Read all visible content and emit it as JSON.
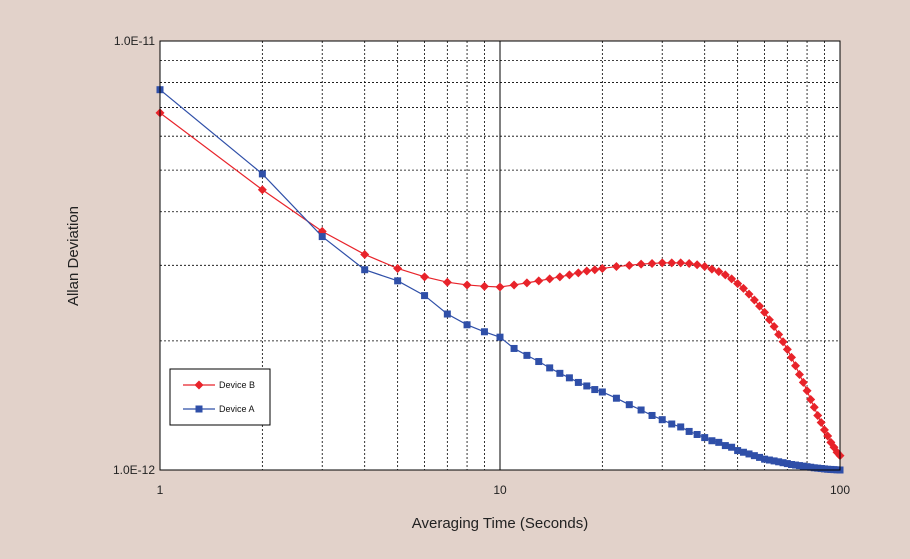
{
  "chart_data": {
    "type": "line",
    "title": "",
    "xlabel": "Averaging Time (Seconds)",
    "ylabel": "Allan Deviation",
    "x_scale": "log",
    "y_scale": "log",
    "xlim": [
      1,
      100
    ],
    "ylim": [
      1e-12,
      1e-11
    ],
    "x_tick_labels": [
      "1",
      "10",
      "100"
    ],
    "y_tick_labels": [
      "1.0E-12",
      "1.0E-11"
    ],
    "grid": true,
    "legend_position": "lower-left",
    "colors": {
      "background": "#e2d2ca",
      "plot_area": "#ffffff",
      "device_b": "#e8232a",
      "device_a": "#2f4fa8"
    },
    "series": [
      {
        "name": "Device B",
        "marker": "diamond",
        "x": [
          1,
          2,
          3,
          4,
          5,
          6,
          7,
          8,
          9,
          10,
          11,
          12,
          13,
          14,
          15,
          16,
          17,
          18,
          19,
          20,
          22,
          24,
          26,
          28,
          30,
          32,
          34,
          36,
          38,
          40,
          42,
          44,
          46,
          48,
          50,
          52,
          54,
          56,
          58,
          60,
          62,
          64,
          66,
          68,
          70,
          72,
          74,
          76,
          78,
          80,
          82,
          84,
          86,
          88,
          90,
          92,
          94,
          96,
          98,
          100
        ],
        "y": [
          6.8e-12,
          4.5e-12,
          3.6e-12,
          3.18e-12,
          2.95e-12,
          2.82e-12,
          2.74e-12,
          2.7e-12,
          2.68e-12,
          2.67e-12,
          2.7e-12,
          2.73e-12,
          2.76e-12,
          2.79e-12,
          2.82e-12,
          2.85e-12,
          2.88e-12,
          2.91e-12,
          2.93e-12,
          2.95e-12,
          2.98e-12,
          3e-12,
          3.02e-12,
          3.03e-12,
          3.04e-12,
          3.04e-12,
          3.04e-12,
          3.03e-12,
          3.01e-12,
          2.98e-12,
          2.94e-12,
          2.9e-12,
          2.85e-12,
          2.79e-12,
          2.72e-12,
          2.65e-12,
          2.57e-12,
          2.49e-12,
          2.41e-12,
          2.33e-12,
          2.24e-12,
          2.16e-12,
          2.07e-12,
          1.99e-12,
          1.91e-12,
          1.83e-12,
          1.75e-12,
          1.67e-12,
          1.6e-12,
          1.53e-12,
          1.46e-12,
          1.4e-12,
          1.34e-12,
          1.29e-12,
          1.24e-12,
          1.2e-12,
          1.16e-12,
          1.13e-12,
          1.1e-12,
          1.08e-12
        ]
      },
      {
        "name": "Device A",
        "marker": "square",
        "x": [
          1,
          2,
          3,
          4,
          5,
          6,
          7,
          8,
          9,
          10,
          11,
          12,
          13,
          14,
          15,
          16,
          17,
          18,
          19,
          20,
          22,
          24,
          26,
          28,
          30,
          32,
          34,
          36,
          38,
          40,
          42,
          44,
          46,
          48,
          50,
          52,
          54,
          56,
          58,
          60,
          62,
          64,
          66,
          68,
          70,
          72,
          74,
          76,
          78,
          80,
          82,
          84,
          86,
          88,
          90,
          92,
          94,
          96,
          98,
          100
        ],
        "y": [
          7.7e-12,
          4.9e-12,
          3.5e-12,
          2.93e-12,
          2.76e-12,
          2.55e-12,
          2.31e-12,
          2.18e-12,
          2.1e-12,
          2.04e-12,
          1.92e-12,
          1.85e-12,
          1.79e-12,
          1.73e-12,
          1.68e-12,
          1.64e-12,
          1.6e-12,
          1.57e-12,
          1.54e-12,
          1.52e-12,
          1.47e-12,
          1.42e-12,
          1.38e-12,
          1.34e-12,
          1.31e-12,
          1.28e-12,
          1.26e-12,
          1.23e-12,
          1.21e-12,
          1.19e-12,
          1.17e-12,
          1.16e-12,
          1.14e-12,
          1.13e-12,
          1.11e-12,
          1.1e-12,
          1.09e-12,
          1.08e-12,
          1.07e-12,
          1.06e-12,
          1.055e-12,
          1.05e-12,
          1.045e-12,
          1.04e-12,
          1.035e-12,
          1.03e-12,
          1.027e-12,
          1.024e-12,
          1.021e-12,
          1.018e-12,
          1.015e-12,
          1.012e-12,
          1.01e-12,
          1.008e-12,
          1.006e-12,
          1.004e-12,
          1.003e-12,
          1.002e-12,
          1.001e-12,
          1e-12
        ]
      }
    ]
  }
}
